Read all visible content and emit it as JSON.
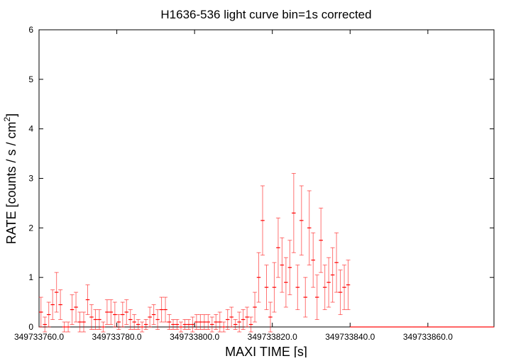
{
  "chart_data": {
    "type": "errorbar",
    "title": "H1636-536 light curve bin=1s corrected",
    "xlabel": "MAXI TIME [s]",
    "ylabel_parts": [
      "RATE [counts / s / cm",
      "2",
      "]"
    ],
    "xlim": [
      349733760,
      349733877
    ],
    "ylim": [
      0,
      6
    ],
    "yticks": [
      0,
      1,
      2,
      3,
      4,
      5,
      6
    ],
    "xticks": [
      {
        "value": 349733760,
        "label": "349733760.0"
      },
      {
        "value": 349733780,
        "label": "349733780.0"
      },
      {
        "value": 349733800,
        "label": "349733800.0"
      },
      {
        "value": 349733820,
        "label": "349733820.0"
      },
      {
        "value": 349733840,
        "label": "349733840.0"
      },
      {
        "value": 349733860,
        "label": "349733860.0"
      }
    ],
    "series": [
      {
        "color": "#ff0000",
        "x": [
          349733760.5,
          349733761.5,
          349733762.5,
          349733763.5,
          349733764.5,
          349733765.5,
          349733766.5,
          349733767.5,
          349733768.5,
          349733769.5,
          349733770.5,
          349733771.5,
          349733772.5,
          349733773.5,
          349733774.5,
          349733775.5,
          349733776.5,
          349733777.5,
          349733778.5,
          349733779.5,
          349733780.5,
          349733781.5,
          349733782.5,
          349733783.5,
          349733784.5,
          349733785.5,
          349733786.5,
          349733787.5,
          349733788.5,
          349733789.5,
          349733790.5,
          349733791.5,
          349733792.5,
          349733793.5,
          349733794.5,
          349733795.5,
          349733796.5,
          349733797.5,
          349733798.5,
          349733799.5,
          349733800.5,
          349733801.5,
          349733802.5,
          349733803.5,
          349733804.5,
          349733805.5,
          349733806.5,
          349733807.5,
          349733808.5,
          349733809.5,
          349733810.5,
          349733811.5,
          349733812.5,
          349733813.5,
          349733814.5,
          349733815.5,
          349733816.5,
          349733817.5,
          349733818.5,
          349733819.5,
          349733820.5,
          349733821.5,
          349733822.5,
          349733823.5,
          349733824.5,
          349733825.5,
          349733826.5,
          349733827.5,
          349733828.5,
          349733829.5,
          349733830.5,
          349733831.5,
          349733832.5,
          349733833.5,
          349733834.5,
          349733835.5,
          349733836.5,
          349733837.5,
          349733838.5,
          349733839.5,
          349733840.5,
          349733841.5,
          349733842.5,
          349733843.5,
          349733844.5,
          349733845.5,
          349733846.5,
          349733847.5,
          349733848.5,
          349733849.5,
          349733850.5,
          349733851.5,
          349733852.5,
          349733853.5,
          349733854.5,
          349733855.5,
          349733856.5,
          349733857.5,
          349733858.5,
          349733859.5,
          349733860.5,
          349733861.5,
          349733862.5,
          349733863.5,
          349733864.5,
          349733865.5,
          349733866.5,
          349733867.5,
          349733868.5,
          349733869.5,
          349733870.5,
          349733871.5,
          349733872.5,
          349733873.5,
          349733874.5,
          349733875.5,
          349733876.5
        ],
        "values": [
          0.3,
          0.05,
          0.25,
          0.45,
          0.7,
          0.45,
          0,
          0,
          0.35,
          0.4,
          0.1,
          0.1,
          0.55,
          0.2,
          0.15,
          0.15,
          0,
          0.3,
          0.3,
          0.25,
          0.1,
          0.25,
          0.3,
          0.15,
          0.1,
          0.05,
          0,
          0.05,
          0.2,
          0.25,
          0.15,
          0.35,
          0.35,
          0.1,
          0.05,
          0.05,
          0,
          0.05,
          0.05,
          0.05,
          0.1,
          0.1,
          0.1,
          0.1,
          0.05,
          0.1,
          0.1,
          0,
          0.15,
          0.2,
          0.05,
          0.1,
          0.15,
          0.2,
          0.05,
          0.4,
          1.0,
          2.15,
          0.8,
          0.2,
          0.8,
          1.6,
          1.25,
          0.9,
          1.2,
          2.3,
          0.8,
          2.15,
          0.6,
          2.0,
          1.35,
          0.6,
          1.75,
          0.8,
          0.9,
          1.05,
          1.3,
          0.7,
          0.8,
          0.85,
          0,
          0,
          0,
          0,
          0,
          0,
          0,
          0,
          0,
          0,
          0,
          0,
          0,
          0,
          0,
          0,
          0,
          0,
          0,
          0,
          0,
          0,
          0,
          0,
          0,
          0,
          0,
          0,
          0,
          0,
          0,
          0,
          0,
          0,
          0,
          0,
          0
        ],
        "errors": [
          0.3,
          0.15,
          0.25,
          0.3,
          0.4,
          0.3,
          0.1,
          0.1,
          0.3,
          0.3,
          0.2,
          0.2,
          0.3,
          0.25,
          0.2,
          0.2,
          0.1,
          0.25,
          0.25,
          0.25,
          0.15,
          0.25,
          0.25,
          0.2,
          0.15,
          0.1,
          0.1,
          0.1,
          0.2,
          0.2,
          0.2,
          0.25,
          0.25,
          0.15,
          0.1,
          0.1,
          0.1,
          0.1,
          0.1,
          0.15,
          0.15,
          0.15,
          0.15,
          0.15,
          0.15,
          0.15,
          0.2,
          0.1,
          0.2,
          0.2,
          0.1,
          0.2,
          0.2,
          0.2,
          0.15,
          0.3,
          0.5,
          0.7,
          0.45,
          0.3,
          0.5,
          0.6,
          0.55,
          0.5,
          0.55,
          0.8,
          0.45,
          0.7,
          0.4,
          0.75,
          0.55,
          0.45,
          0.65,
          0.45,
          0.5,
          0.55,
          0.6,
          0.45,
          0.45,
          0.5,
          0,
          0,
          0,
          0,
          0,
          0,
          0,
          0,
          0,
          0,
          0,
          0,
          0,
          0,
          0,
          0,
          0,
          0,
          0,
          0,
          0,
          0,
          0,
          0,
          0,
          0,
          0,
          0,
          0,
          0,
          0,
          0,
          0,
          0,
          0,
          0,
          0
        ]
      }
    ]
  }
}
